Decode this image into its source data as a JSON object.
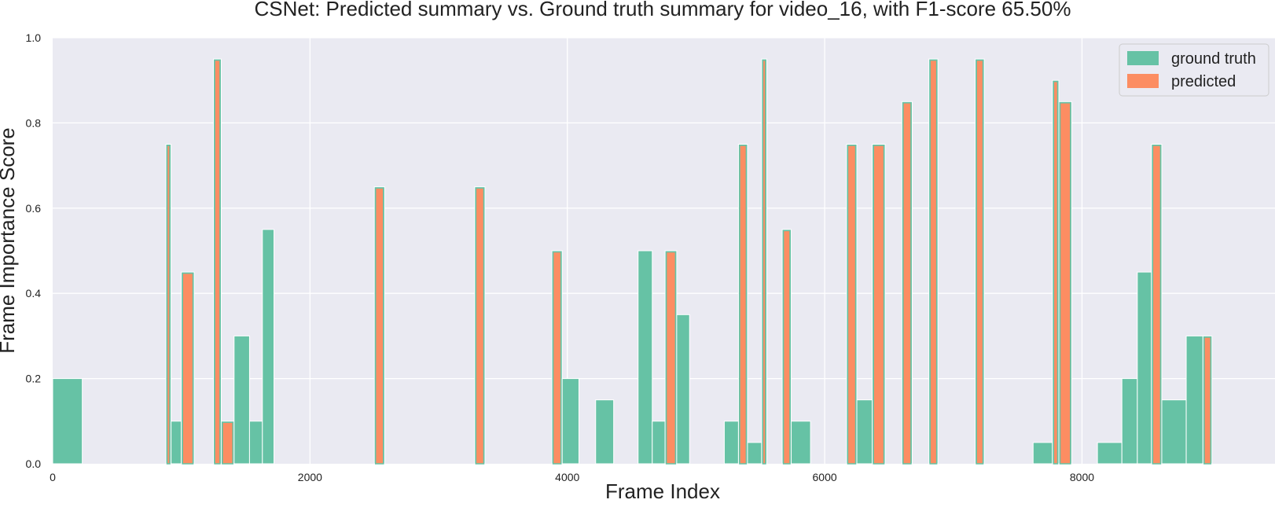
{
  "chart_data": {
    "type": "bar",
    "title": "CSNet: Predicted summary vs. Ground truth summary for video_16, with F1-score 65.50%",
    "xlabel": "Frame Index",
    "ylabel": "Frame Importance Score",
    "xlim": [
      0,
      9500
    ],
    "ylim": [
      0,
      1.0
    ],
    "x_ticks": [
      0,
      2000,
      4000,
      6000,
      8000
    ],
    "y_ticks": [
      0.0,
      0.2,
      0.4,
      0.6,
      0.8,
      1.0
    ],
    "x_tick_labels": [
      "0",
      "2000",
      "4000",
      "6000",
      "8000"
    ],
    "y_tick_labels": [
      "0.0",
      "0.2",
      "0.4",
      "0.6",
      "0.8",
      "1.0"
    ],
    "grid": true,
    "legend_position": "top-right",
    "series": [
      {
        "name": "ground truth",
        "color": "#66c2a5",
        "segments": [
          {
            "start": 0,
            "end": 230,
            "value": 0.2
          },
          {
            "start": 880,
            "end": 920,
            "value": 0.75
          },
          {
            "start": 920,
            "end": 1000,
            "value": 0.1
          },
          {
            "start": 1000,
            "end": 1100,
            "value": 0.45
          },
          {
            "start": 1250,
            "end": 1310,
            "value": 0.95
          },
          {
            "start": 1310,
            "end": 1410,
            "value": 0.1
          },
          {
            "start": 1410,
            "end": 1530,
            "value": 0.3
          },
          {
            "start": 1530,
            "end": 1630,
            "value": 0.1
          },
          {
            "start": 1630,
            "end": 1720,
            "value": 0.55
          },
          {
            "start": 2500,
            "end": 2580,
            "value": 0.65
          },
          {
            "start": 3280,
            "end": 3360,
            "value": 0.65
          },
          {
            "start": 3880,
            "end": 3960,
            "value": 0.5
          },
          {
            "start": 3960,
            "end": 4090,
            "value": 0.2
          },
          {
            "start": 4220,
            "end": 4360,
            "value": 0.15
          },
          {
            "start": 4550,
            "end": 4660,
            "value": 0.5
          },
          {
            "start": 4660,
            "end": 4760,
            "value": 0.1
          },
          {
            "start": 4760,
            "end": 4850,
            "value": 0.5
          },
          {
            "start": 4850,
            "end": 4950,
            "value": 0.35
          },
          {
            "start": 5220,
            "end": 5330,
            "value": 0.1
          },
          {
            "start": 5330,
            "end": 5400,
            "value": 0.75
          },
          {
            "start": 5400,
            "end": 5510,
            "value": 0.05
          },
          {
            "start": 5510,
            "end": 5550,
            "value": 0.95
          },
          {
            "start": 5670,
            "end": 5740,
            "value": 0.55
          },
          {
            "start": 5740,
            "end": 5890,
            "value": 0.1
          },
          {
            "start": 6170,
            "end": 6250,
            "value": 0.75
          },
          {
            "start": 6250,
            "end": 6370,
            "value": 0.15
          },
          {
            "start": 6370,
            "end": 6470,
            "value": 0.75
          },
          {
            "start": 6600,
            "end": 6680,
            "value": 0.85
          },
          {
            "start": 6810,
            "end": 6880,
            "value": 0.95
          },
          {
            "start": 7170,
            "end": 7240,
            "value": 0.95
          },
          {
            "start": 7620,
            "end": 7770,
            "value": 0.05
          },
          {
            "start": 7770,
            "end": 7820,
            "value": 0.9
          },
          {
            "start": 7820,
            "end": 7920,
            "value": 0.85
          },
          {
            "start": 8120,
            "end": 8310,
            "value": 0.05
          },
          {
            "start": 8310,
            "end": 8430,
            "value": 0.2
          },
          {
            "start": 8430,
            "end": 8540,
            "value": 0.45
          },
          {
            "start": 8540,
            "end": 8620,
            "value": 0.75
          },
          {
            "start": 8620,
            "end": 8810,
            "value": 0.15
          },
          {
            "start": 8810,
            "end": 8940,
            "value": 0.3
          },
          {
            "start": 8940,
            "end": 9010,
            "value": 0.3
          }
        ]
      },
      {
        "name": "predicted",
        "color": "#fc8d62",
        "segments": [
          {
            "start": 880,
            "end": 920,
            "value": 0.75
          },
          {
            "start": 1000,
            "end": 1100,
            "value": 0.45
          },
          {
            "start": 1250,
            "end": 1310,
            "value": 0.95
          },
          {
            "start": 1310,
            "end": 1410,
            "value": 0.1
          },
          {
            "start": 2500,
            "end": 2580,
            "value": 0.65
          },
          {
            "start": 3280,
            "end": 3360,
            "value": 0.65
          },
          {
            "start": 3880,
            "end": 3960,
            "value": 0.5
          },
          {
            "start": 4760,
            "end": 4850,
            "value": 0.5
          },
          {
            "start": 5330,
            "end": 5400,
            "value": 0.75
          },
          {
            "start": 5510,
            "end": 5550,
            "value": 0.95
          },
          {
            "start": 5670,
            "end": 5740,
            "value": 0.55
          },
          {
            "start": 6170,
            "end": 6250,
            "value": 0.75
          },
          {
            "start": 6370,
            "end": 6470,
            "value": 0.75
          },
          {
            "start": 6600,
            "end": 6680,
            "value": 0.85
          },
          {
            "start": 6810,
            "end": 6880,
            "value": 0.95
          },
          {
            "start": 7170,
            "end": 7240,
            "value": 0.95
          },
          {
            "start": 7770,
            "end": 7820,
            "value": 0.9
          },
          {
            "start": 7820,
            "end": 7920,
            "value": 0.85
          },
          {
            "start": 8540,
            "end": 8620,
            "value": 0.75
          },
          {
            "start": 8940,
            "end": 9010,
            "value": 0.3
          }
        ]
      }
    ]
  },
  "colors": {
    "plot_background": "#eaeaf2",
    "grid": "#ffffff",
    "text": "#222222"
  }
}
